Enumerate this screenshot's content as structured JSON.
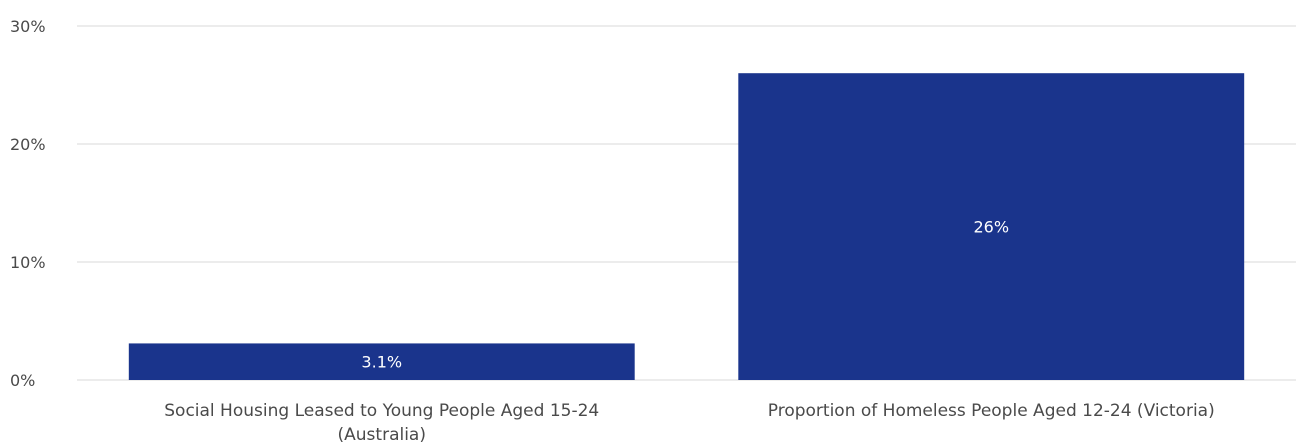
{
  "chart_data": {
    "type": "bar",
    "categories": [
      [
        "Social Housing Leased to Young People Aged 15-24",
        "(Australia)"
      ],
      [
        "Proportion of Homeless People Aged 12-24 (Victoria)"
      ]
    ],
    "values": [
      3.1,
      26
    ],
    "data_labels": [
      "3.1%",
      "26%"
    ],
    "yticks": [
      {
        "value": 0,
        "label": "0%"
      },
      {
        "value": 10,
        "label": "10%"
      },
      {
        "value": 20,
        "label": "20%"
      },
      {
        "value": 30,
        "label": "30%"
      }
    ],
    "ylim": [
      0,
      30
    ],
    "grid": true,
    "bar_color": "#1a348c",
    "title": "",
    "xlabel": "",
    "ylabel": ""
  }
}
